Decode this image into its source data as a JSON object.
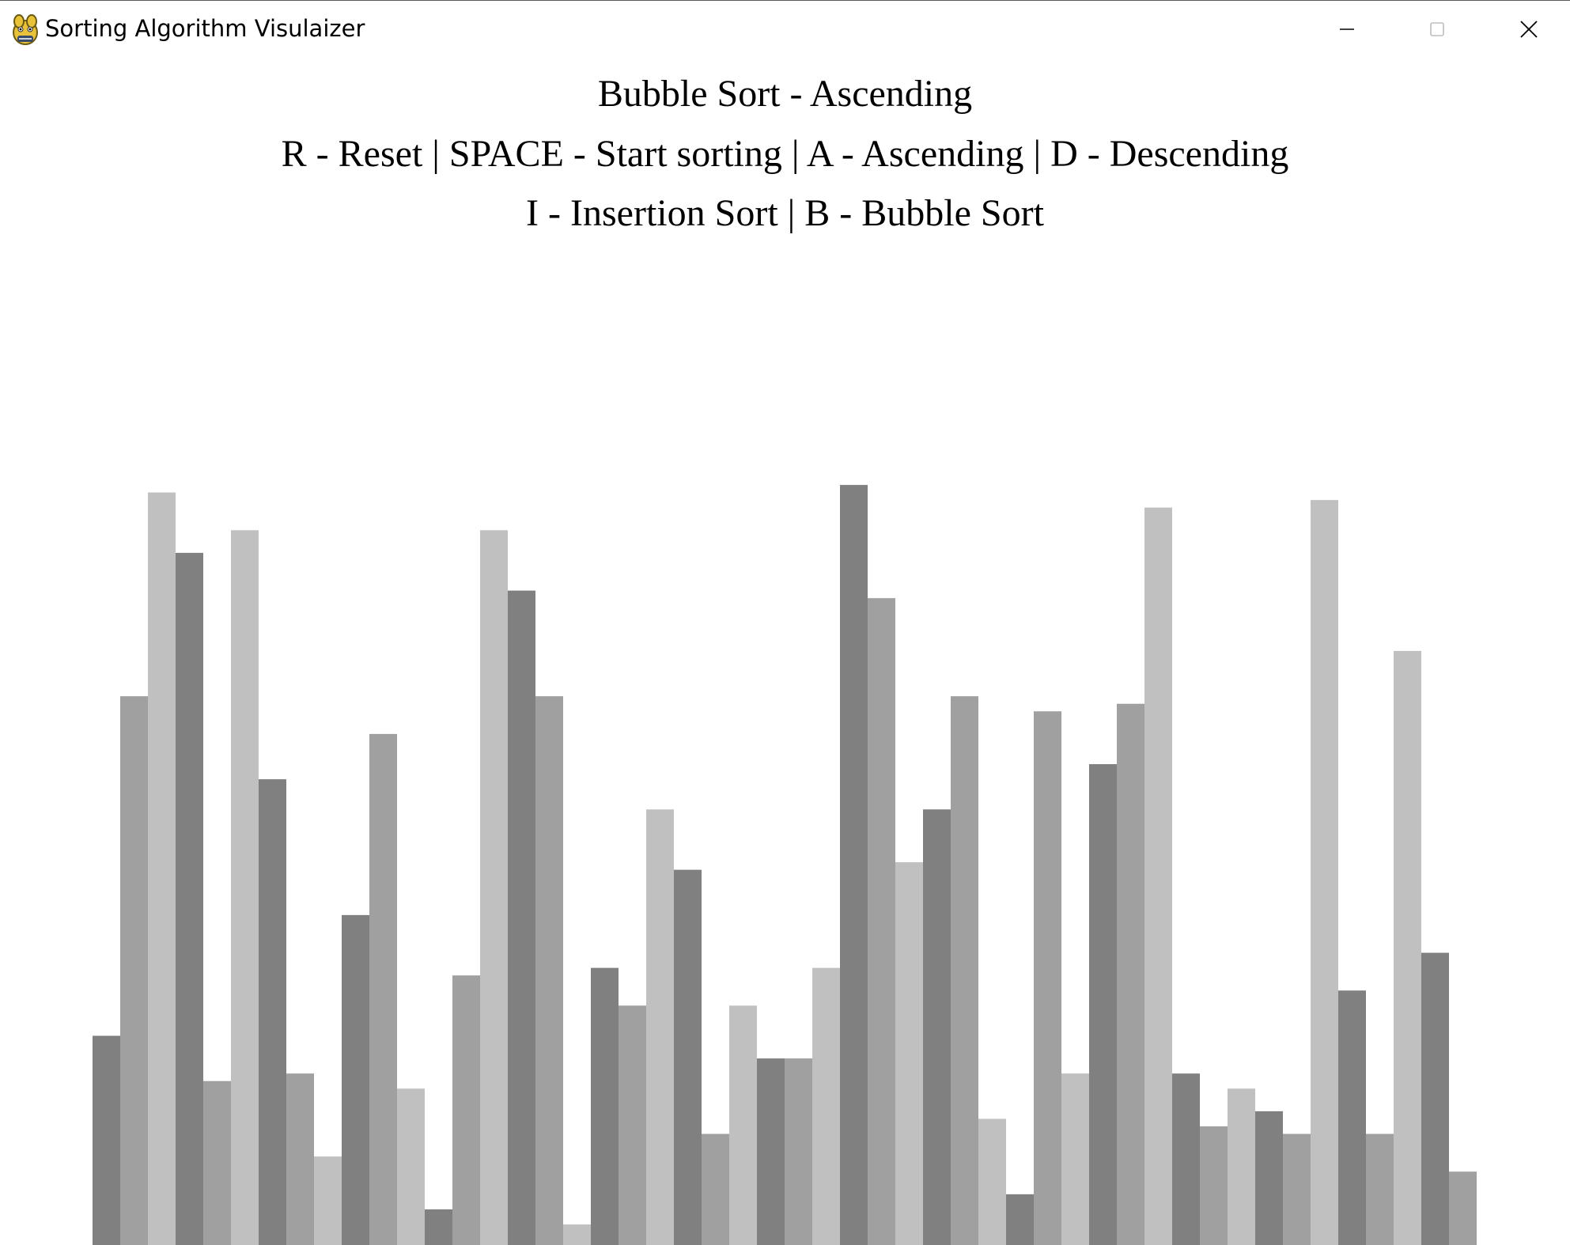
{
  "window": {
    "title": "Sorting Algorithm Visulaizer",
    "icon": "pygame-snake-icon",
    "controls": [
      "minimize-icon",
      "maximize-icon",
      "close-icon"
    ]
  },
  "header": {
    "algorithm_status": "Bubble Sort - Ascending",
    "controls_line": "R - Reset | SPACE - Start sorting | A - Ascending | D - Descending",
    "algorithms_line": "I - Insertion Sort | B - Bubble Sort"
  },
  "colors": {
    "bar_dark": "#808080",
    "bar_mid": "#a0a0a0",
    "bar_light": "#c0c0c0",
    "background": "#ffffff"
  },
  "chart_data": {
    "type": "bar",
    "values": [
      25,
      70,
      97,
      89,
      19,
      92,
      59,
      20,
      9,
      41,
      65,
      18,
      2,
      33,
      92,
      84,
      70,
      0,
      34,
      29,
      55,
      47,
      12,
      29,
      22,
      22,
      34,
      98,
      83,
      48,
      55,
      70,
      14,
      4,
      68,
      20,
      61,
      69,
      95,
      20,
      13,
      18,
      15,
      12,
      96,
      31,
      12,
      76,
      36,
      7
    ],
    "ylim": [
      0,
      100
    ]
  }
}
